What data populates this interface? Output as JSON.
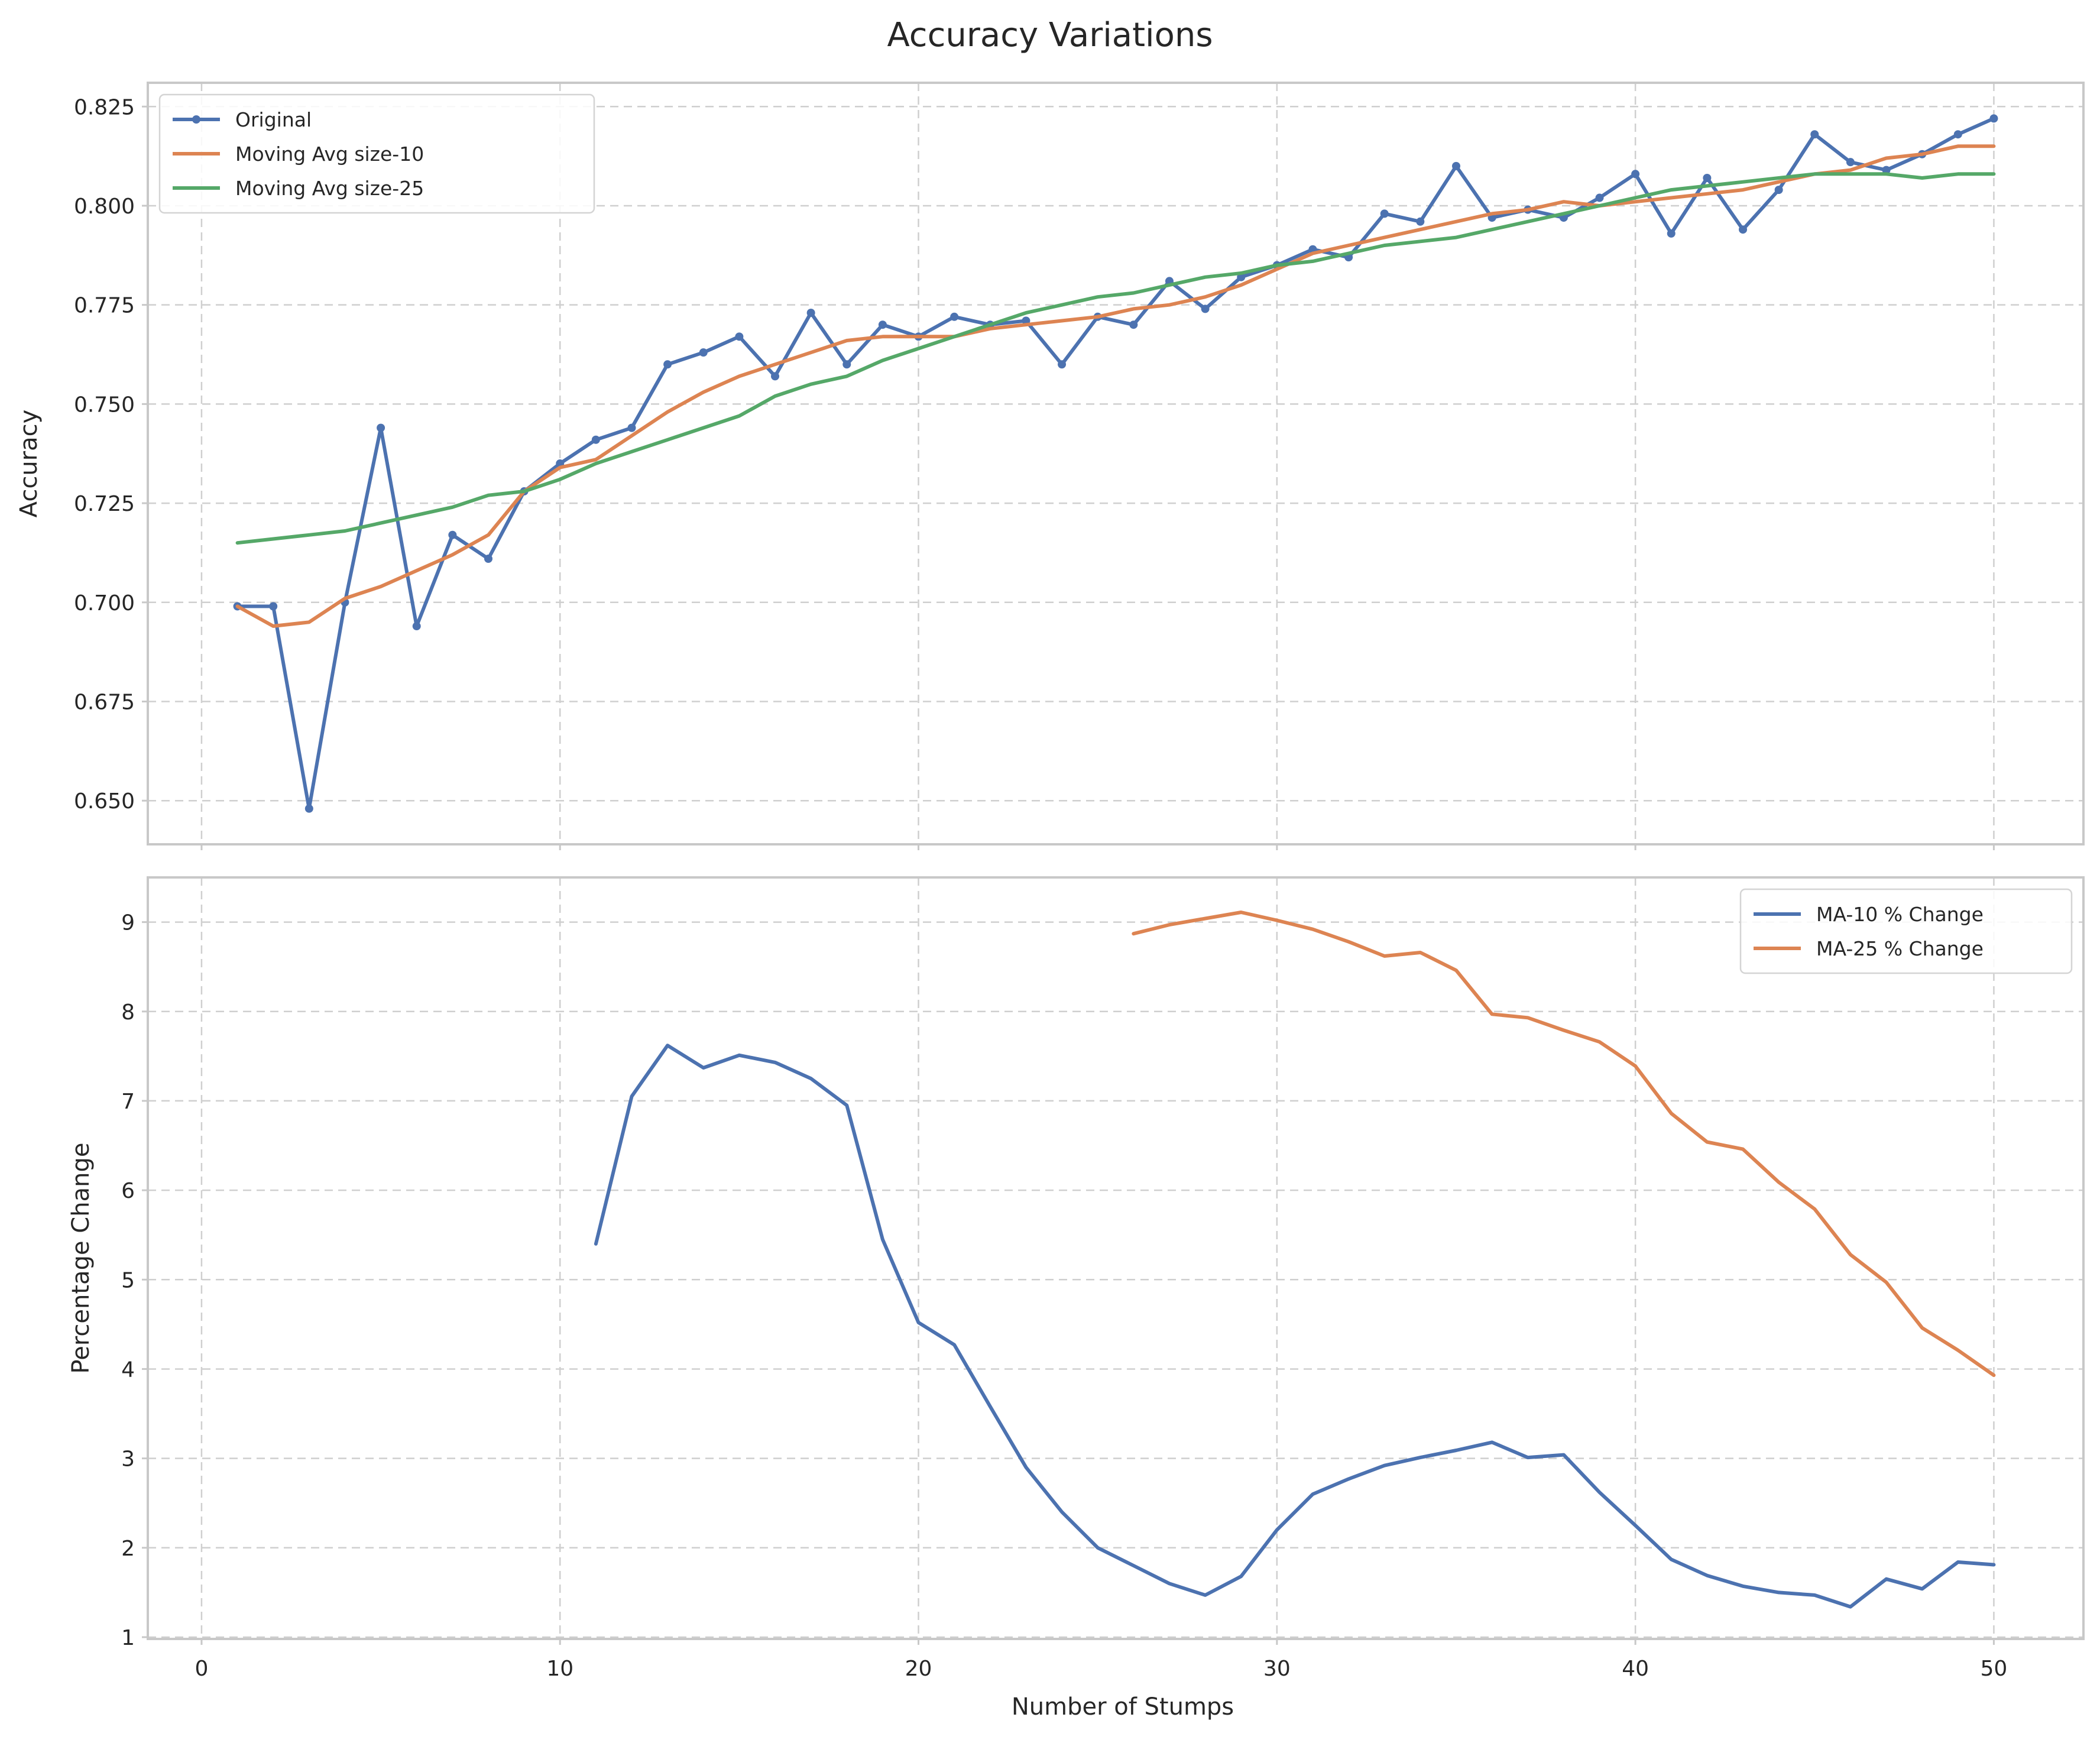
{
  "title": "Accuracy Variations",
  "chart_data": [
    {
      "type": "line",
      "title": "",
      "xlabel": "",
      "ylabel": "Accuracy",
      "xlim": [
        -1.5,
        52.5
      ],
      "ylim": [
        0.639,
        0.831
      ],
      "xticks": [
        0,
        10,
        20,
        30,
        40,
        50
      ],
      "yticks": [
        0.65,
        0.675,
        0.7,
        0.725,
        0.75,
        0.775,
        0.8,
        0.825
      ],
      "ytick_labels": [
        "0.650",
        "0.675",
        "0.700",
        "0.725",
        "0.750",
        "0.775",
        "0.800",
        "0.825"
      ],
      "grid": true,
      "legend_position": "upper-left",
      "series": [
        {
          "name": "Original",
          "color": "#4c72b0",
          "marker": "circle",
          "x": [
            1,
            2,
            3,
            4,
            5,
            6,
            7,
            8,
            9,
            10,
            11,
            12,
            13,
            14,
            15,
            16,
            17,
            18,
            19,
            20,
            21,
            22,
            23,
            24,
            25,
            26,
            27,
            28,
            29,
            30,
            31,
            32,
            33,
            34,
            35,
            36,
            37,
            38,
            39,
            40,
            41,
            42,
            43,
            44,
            45,
            46,
            47,
            48,
            49,
            50
          ],
          "y": [
            0.699,
            0.699,
            0.648,
            0.7,
            0.744,
            0.694,
            0.717,
            0.711,
            0.728,
            0.735,
            0.741,
            0.744,
            0.76,
            0.763,
            0.767,
            0.757,
            0.773,
            0.76,
            0.77,
            0.767,
            0.772,
            0.77,
            0.771,
            0.76,
            0.772,
            0.77,
            0.781,
            0.774,
            0.782,
            0.785,
            0.789,
            0.787,
            0.798,
            0.796,
            0.81,
            0.797,
            0.799,
            0.797,
            0.802,
            0.808,
            0.793,
            0.807,
            0.794,
            0.804,
            0.818,
            0.811,
            0.809,
            0.813,
            0.818,
            0.822
          ]
        },
        {
          "name": "Moving Avg size-10",
          "color": "#dd8452",
          "marker": "none",
          "x": [
            1,
            2,
            3,
            4,
            5,
            6,
            7,
            8,
            9,
            10,
            11,
            12,
            13,
            14,
            15,
            16,
            17,
            18,
            19,
            20,
            21,
            22,
            23,
            24,
            25,
            26,
            27,
            28,
            29,
            30,
            31,
            32,
            33,
            34,
            35,
            36,
            37,
            38,
            39,
            40,
            41,
            42,
            43,
            44,
            45,
            46,
            47,
            48,
            49,
            50
          ],
          "y": [
            0.699,
            0.694,
            0.695,
            0.701,
            0.704,
            0.708,
            0.712,
            0.717,
            0.728,
            0.734,
            0.736,
            0.742,
            0.748,
            0.753,
            0.757,
            0.76,
            0.763,
            0.766,
            0.767,
            0.767,
            0.767,
            0.769,
            0.77,
            0.771,
            0.772,
            0.774,
            0.775,
            0.777,
            0.78,
            0.784,
            0.788,
            0.79,
            0.792,
            0.794,
            0.796,
            0.798,
            0.799,
            0.801,
            0.8,
            0.801,
            0.802,
            0.803,
            0.804,
            0.806,
            0.808,
            0.809,
            0.812,
            0.813,
            0.815,
            0.815
          ]
        },
        {
          "name": "Moving Avg size-25",
          "color": "#55a868",
          "marker": "none",
          "x": [
            1,
            2,
            3,
            4,
            5,
            6,
            7,
            8,
            9,
            10,
            11,
            12,
            13,
            14,
            15,
            16,
            17,
            18,
            19,
            20,
            21,
            22,
            23,
            24,
            25,
            26,
            27,
            28,
            29,
            30,
            31,
            32,
            33,
            34,
            35,
            36,
            37,
            38,
            39,
            40,
            41,
            42,
            43,
            44,
            45,
            46,
            47,
            48,
            49,
            50
          ],
          "y": [
            0.715,
            0.716,
            0.717,
            0.718,
            0.72,
            0.722,
            0.724,
            0.727,
            0.728,
            0.731,
            0.735,
            0.738,
            0.741,
            0.744,
            0.747,
            0.752,
            0.755,
            0.757,
            0.761,
            0.764,
            0.767,
            0.77,
            0.773,
            0.775,
            0.777,
            0.778,
            0.78,
            0.782,
            0.783,
            0.785,
            0.786,
            0.788,
            0.79,
            0.791,
            0.792,
            0.794,
            0.796,
            0.798,
            0.8,
            0.802,
            0.804,
            0.805,
            0.806,
            0.807,
            0.808,
            0.808,
            0.808,
            0.807,
            0.808,
            0.808
          ]
        }
      ]
    },
    {
      "type": "line",
      "title": "",
      "xlabel": "Number of Stumps",
      "ylabel": "Percentage Change",
      "xlim": [
        -1.5,
        52.5
      ],
      "ylim": [
        0.98,
        9.5
      ],
      "xticks": [
        0,
        10,
        20,
        30,
        40,
        50
      ],
      "xtick_labels": [
        "0",
        "10",
        "20",
        "30",
        "40",
        "50"
      ],
      "yticks": [
        1,
        2,
        3,
        4,
        5,
        6,
        7,
        8,
        9
      ],
      "ytick_labels": [
        "1",
        "2",
        "3",
        "4",
        "5",
        "6",
        "7",
        "8",
        "9"
      ],
      "grid": true,
      "legend_position": "upper-right",
      "series": [
        {
          "name": "MA-10 % Change",
          "color": "#4c72b0",
          "x": [
            11,
            12,
            13,
            14,
            15,
            16,
            17,
            18,
            19,
            20,
            21,
            22,
            23,
            24,
            25,
            26,
            27,
            28,
            29,
            30,
            31,
            32,
            33,
            34,
            35,
            36,
            37,
            38,
            39,
            40,
            41,
            42,
            43,
            44,
            45,
            46,
            47,
            48,
            49,
            50
          ],
          "y": [
            5.4,
            7.05,
            7.62,
            7.37,
            7.51,
            7.43,
            7.25,
            6.95,
            5.45,
            4.52,
            4.27,
            3.58,
            2.9,
            2.4,
            2.0,
            1.8,
            1.6,
            1.47,
            1.68,
            2.2,
            2.6,
            2.77,
            2.92,
            3.01,
            3.09,
            3.18,
            3.01,
            3.04,
            2.62,
            2.25,
            1.87,
            1.69,
            1.57,
            1.5,
            1.47,
            1.34,
            1.65,
            1.54,
            1.84,
            1.81
          ]
        },
        {
          "name": "MA-25 % Change",
          "color": "#dd8452",
          "x": [
            26,
            27,
            28,
            29,
            30,
            31,
            32,
            33,
            34,
            35,
            36,
            37,
            38,
            39,
            40,
            41,
            42,
            43,
            44,
            45,
            46,
            47,
            48,
            49,
            50
          ],
          "y": [
            8.87,
            8.97,
            9.04,
            9.11,
            9.02,
            8.92,
            8.78,
            8.62,
            8.66,
            8.46,
            7.97,
            7.93,
            7.79,
            7.66,
            7.39,
            6.86,
            6.54,
            6.46,
            6.09,
            5.79,
            5.28,
            4.97,
            4.46,
            4.21,
            3.93
          ]
        }
      ]
    }
  ]
}
